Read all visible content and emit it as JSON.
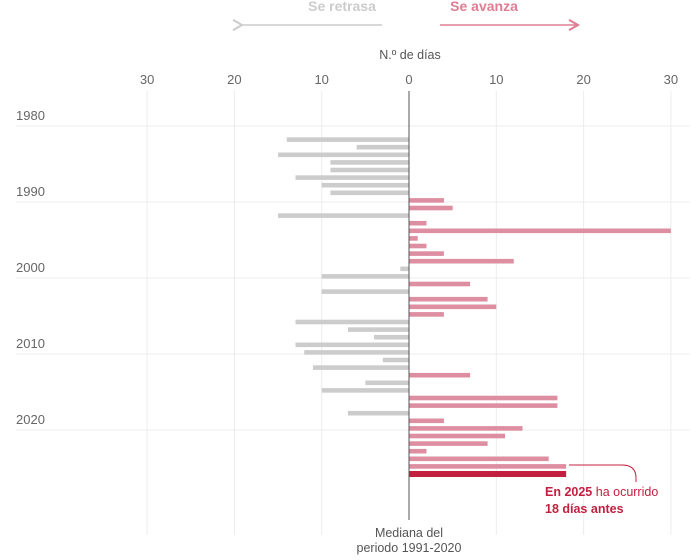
{
  "header": {
    "left_direction": "Se retrasa",
    "right_direction": "Se avanza",
    "axis_title": "N.º de días"
  },
  "footer": {
    "median_line1": "Mediana del",
    "median_line2": "periodo 1991-2020"
  },
  "annotation": {
    "part1_bold": "En 2025",
    "part2": " ha ocurrido",
    "part3_bold": "18 días antes"
  },
  "colors": {
    "delay": "#cccccc",
    "advance": "#dd8ea1",
    "highlight": "#c2203f",
    "left_text": "#cccccc",
    "right_text": "#e07d93",
    "annotation_text": "#c2203f"
  },
  "chart_data": {
    "type": "bar",
    "orientation": "horizontal",
    "xlabel": "N.º de días",
    "xlim": [
      -30,
      30
    ],
    "x_tick_labels": [
      "30",
      "20",
      "10",
      "0",
      "10",
      "20",
      "30"
    ],
    "y_tick_labels": [
      "1980",
      "1990",
      "2000",
      "2010",
      "2020"
    ],
    "grid": true,
    "years": [
      1981,
      1982,
      1983,
      1984,
      1985,
      1986,
      1987,
      1988,
      1989,
      1990,
      1991,
      1992,
      1993,
      1994,
      1995,
      1996,
      1997,
      1998,
      1999,
      2000,
      2001,
      2002,
      2003,
      2004,
      2005,
      2006,
      2007,
      2008,
      2009,
      2010,
      2011,
      2012,
      2013,
      2014,
      2015,
      2016,
      2017,
      2018,
      2019,
      2020,
      2021,
      2022,
      2023,
      2024,
      2025
    ],
    "values": [
      -14,
      -6,
      -15,
      -9,
      -9,
      -13,
      -10,
      -9,
      4,
      5,
      -15,
      2,
      30,
      1,
      2,
      4,
      12,
      -1,
      -10,
      7,
      -10,
      9,
      10,
      4,
      -13,
      -7,
      -4,
      -13,
      -12,
      -3,
      -11,
      7,
      -5,
      -10,
      17,
      17,
      -7,
      4,
      13,
      11,
      9,
      2,
      16,
      18,
      18
    ],
    "highlight_year": 2025
  }
}
